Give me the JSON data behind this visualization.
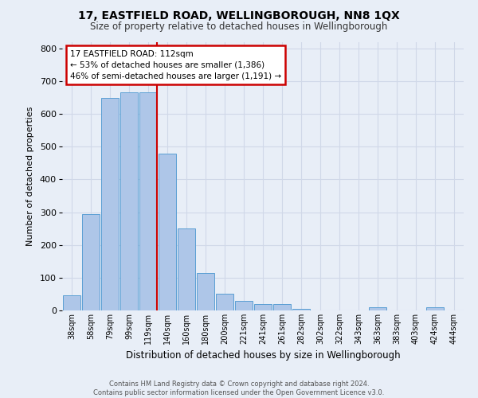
{
  "title": "17, EASTFIELD ROAD, WELLINGBOROUGH, NN8 1QX",
  "subtitle": "Size of property relative to detached houses in Wellingborough",
  "xlabel": "Distribution of detached houses by size in Wellingborough",
  "ylabel": "Number of detached properties",
  "footer_line1": "Contains HM Land Registry data © Crown copyright and database right 2024.",
  "footer_line2": "Contains public sector information licensed under the Open Government Licence v3.0.",
  "bin_labels": [
    "38sqm",
    "58sqm",
    "79sqm",
    "99sqm",
    "119sqm",
    "140sqm",
    "160sqm",
    "180sqm",
    "200sqm",
    "221sqm",
    "241sqm",
    "261sqm",
    "282sqm",
    "302sqm",
    "322sqm",
    "343sqm",
    "363sqm",
    "383sqm",
    "403sqm",
    "424sqm",
    "444sqm"
  ],
  "bar_heights": [
    47,
    294,
    648,
    665,
    665,
    478,
    251,
    113,
    50,
    28,
    19,
    19,
    5,
    1,
    1,
    1,
    9,
    1,
    1,
    10,
    1
  ],
  "bar_color": "#aec6e8",
  "bar_edge_color": "#5a9fd4",
  "grid_color": "#d0d8e8",
  "vline_color": "#cc0000",
  "vline_x_index": 4,
  "annotation_line1": "17 EASTFIELD ROAD: 112sqm",
  "annotation_line2": "← 53% of detached houses are smaller (1,386)",
  "annotation_line3": "46% of semi-detached houses are larger (1,191) →",
  "annotation_box_color": "#cc0000",
  "ylim": [
    0,
    820
  ],
  "yticks": [
    0,
    100,
    200,
    300,
    400,
    500,
    600,
    700,
    800
  ],
  "background_color": "#e8eef7"
}
